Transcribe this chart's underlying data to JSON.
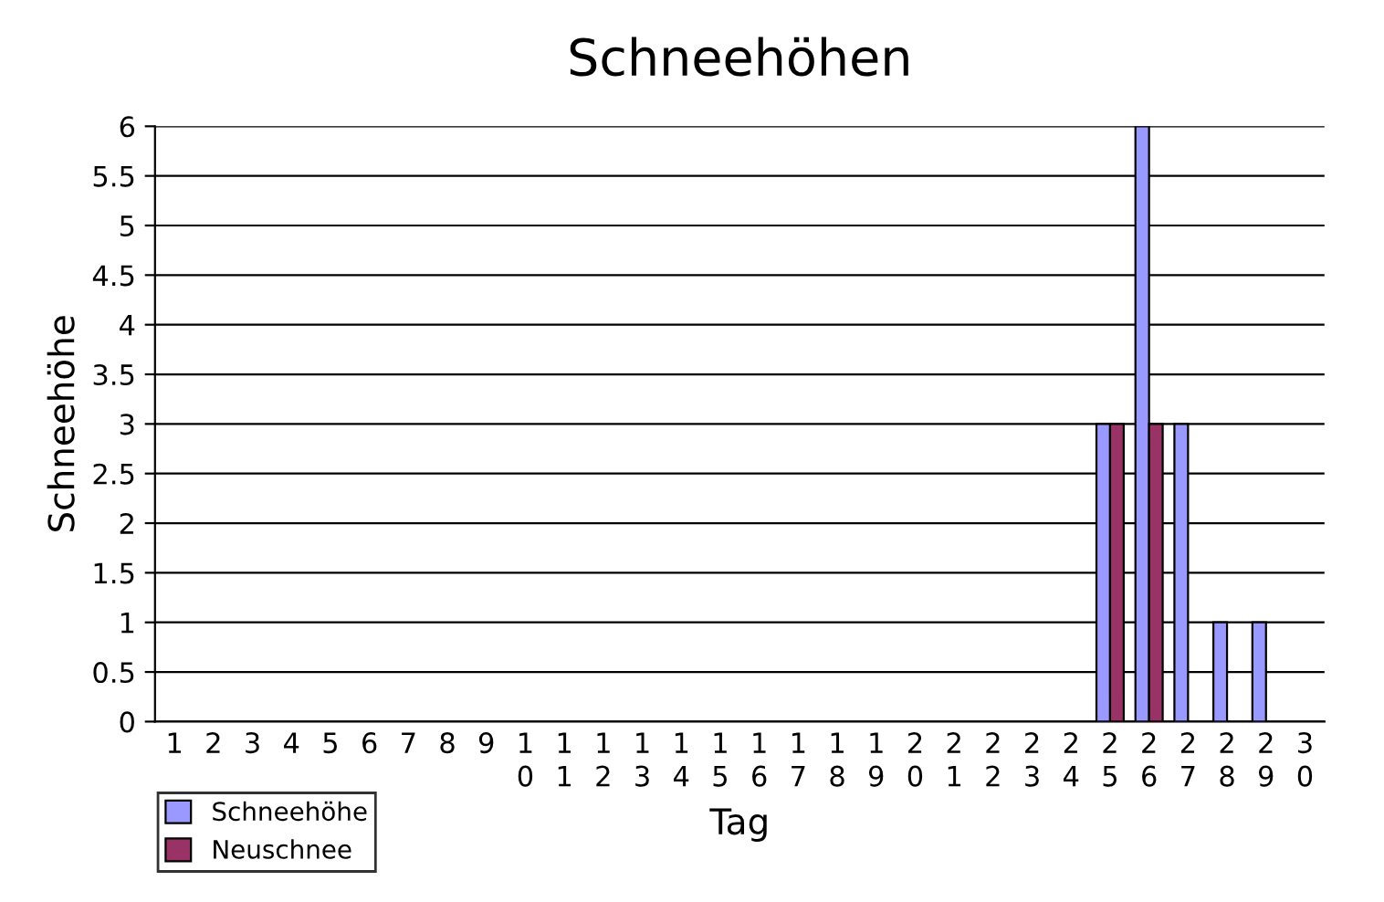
{
  "chart_data": {
    "type": "bar",
    "title": "Schneehöhen",
    "xlabel": "Tag",
    "ylabel": "Schneehöhe",
    "categories": [
      "1",
      "2",
      "3",
      "4",
      "5",
      "6",
      "7",
      "8",
      "9",
      "10",
      "11",
      "12",
      "13",
      "14",
      "15",
      "16",
      "17",
      "18",
      "19",
      "20",
      "21",
      "22",
      "23",
      "24",
      "25",
      "26",
      "27",
      "28",
      "29",
      "30"
    ],
    "series": [
      {
        "name": "Schneehöhe",
        "color": "#9999ff",
        "values": [
          0,
          0,
          0,
          0,
          0,
          0,
          0,
          0,
          0,
          0,
          0,
          0,
          0,
          0,
          0,
          0,
          0,
          0,
          0,
          0,
          0,
          0,
          0,
          0,
          3,
          6,
          3,
          1,
          1,
          0
        ]
      },
      {
        "name": "Neuschnee",
        "color": "#993366",
        "values": [
          0,
          0,
          0,
          0,
          0,
          0,
          0,
          0,
          0,
          0,
          0,
          0,
          0,
          0,
          0,
          0,
          0,
          0,
          0,
          0,
          0,
          0,
          0,
          0,
          3,
          3,
          0,
          0,
          0,
          0
        ]
      }
    ],
    "ylim": [
      0,
      6
    ],
    "yticks": [
      0,
      0.5,
      1,
      1.5,
      2,
      2.5,
      3,
      3.5,
      4,
      4.5,
      5,
      5.5,
      6
    ],
    "grid": "y",
    "legend": "bottom left"
  }
}
